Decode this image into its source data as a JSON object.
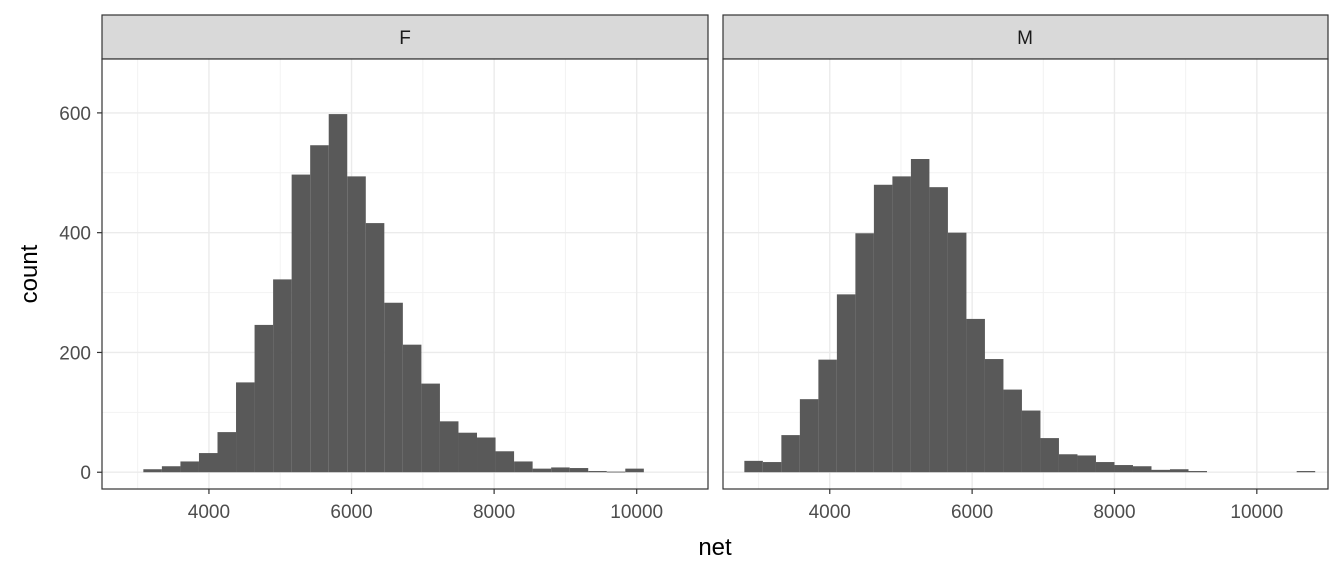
{
  "chart_data": {
    "type": "bar",
    "subtype": "faceted-histogram",
    "title": "",
    "xlabel": "net",
    "ylabel": "count",
    "xlim": [
      2500,
      11000
    ],
    "ylim": [
      -28,
      690
    ],
    "x_ticks": [
      4000,
      6000,
      8000,
      10000
    ],
    "y_ticks": [
      0,
      200,
      400,
      600
    ],
    "grid": true,
    "bar_color": "#595959",
    "strip_color": "#d9d9d9",
    "facets": [
      {
        "label": "F",
        "bins": [
          {
            "x0": 3080,
            "x1": 3340,
            "count": 5
          },
          {
            "x0": 3340,
            "x1": 3600,
            "count": 10
          },
          {
            "x0": 3600,
            "x1": 3860,
            "count": 18
          },
          {
            "x0": 3860,
            "x1": 4120,
            "count": 32
          },
          {
            "x0": 4120,
            "x1": 4380,
            "count": 67
          },
          {
            "x0": 4380,
            "x1": 4640,
            "count": 150
          },
          {
            "x0": 4640,
            "x1": 4900,
            "count": 246
          },
          {
            "x0": 4900,
            "x1": 5160,
            "count": 322
          },
          {
            "x0": 5160,
            "x1": 5420,
            "count": 497
          },
          {
            "x0": 5420,
            "x1": 5680,
            "count": 546
          },
          {
            "x0": 5680,
            "x1": 5940,
            "count": 598
          },
          {
            "x0": 5940,
            "x1": 6200,
            "count": 494
          },
          {
            "x0": 6200,
            "x1": 6460,
            "count": 416
          },
          {
            "x0": 6460,
            "x1": 6720,
            "count": 283
          },
          {
            "x0": 6720,
            "x1": 6980,
            "count": 213
          },
          {
            "x0": 6980,
            "x1": 7240,
            "count": 148
          },
          {
            "x0": 7240,
            "x1": 7500,
            "count": 85
          },
          {
            "x0": 7500,
            "x1": 7760,
            "count": 66
          },
          {
            "x0": 7760,
            "x1": 8020,
            "count": 58
          },
          {
            "x0": 8020,
            "x1": 8280,
            "count": 35
          },
          {
            "x0": 8280,
            "x1": 8540,
            "count": 18
          },
          {
            "x0": 8540,
            "x1": 8800,
            "count": 6
          },
          {
            "x0": 8800,
            "x1": 9060,
            "count": 8
          },
          {
            "x0": 9060,
            "x1": 9320,
            "count": 7
          },
          {
            "x0": 9320,
            "x1": 9580,
            "count": 2
          },
          {
            "x0": 9580,
            "x1": 9840,
            "count": 1
          },
          {
            "x0": 9840,
            "x1": 10100,
            "count": 6
          }
        ]
      },
      {
        "label": "M",
        "bins": [
          {
            "x0": 2800,
            "x1": 3060,
            "count": 19
          },
          {
            "x0": 3060,
            "x1": 3320,
            "count": 17
          },
          {
            "x0": 3320,
            "x1": 3580,
            "count": 62
          },
          {
            "x0": 3580,
            "x1": 3840,
            "count": 122
          },
          {
            "x0": 3840,
            "x1": 4100,
            "count": 188
          },
          {
            "x0": 4100,
            "x1": 4360,
            "count": 297
          },
          {
            "x0": 4360,
            "x1": 4620,
            "count": 399
          },
          {
            "x0": 4620,
            "x1": 4880,
            "count": 480
          },
          {
            "x0": 4880,
            "x1": 5140,
            "count": 494
          },
          {
            "x0": 5140,
            "x1": 5400,
            "count": 523
          },
          {
            "x0": 5400,
            "x1": 5660,
            "count": 476
          },
          {
            "x0": 5660,
            "x1": 5920,
            "count": 400
          },
          {
            "x0": 5920,
            "x1": 6180,
            "count": 256
          },
          {
            "x0": 6180,
            "x1": 6440,
            "count": 189
          },
          {
            "x0": 6440,
            "x1": 6700,
            "count": 138
          },
          {
            "x0": 6700,
            "x1": 6960,
            "count": 103
          },
          {
            "x0": 6960,
            "x1": 7220,
            "count": 57
          },
          {
            "x0": 7220,
            "x1": 7480,
            "count": 30
          },
          {
            "x0": 7480,
            "x1": 7740,
            "count": 28
          },
          {
            "x0": 7740,
            "x1": 8000,
            "count": 17
          },
          {
            "x0": 8000,
            "x1": 8260,
            "count": 12
          },
          {
            "x0": 8260,
            "x1": 8520,
            "count": 10
          },
          {
            "x0": 8520,
            "x1": 8780,
            "count": 4
          },
          {
            "x0": 8780,
            "x1": 9040,
            "count": 5
          },
          {
            "x0": 9040,
            "x1": 9300,
            "count": 2
          },
          {
            "x0": 10560,
            "x1": 10820,
            "count": 2
          }
        ]
      }
    ]
  }
}
